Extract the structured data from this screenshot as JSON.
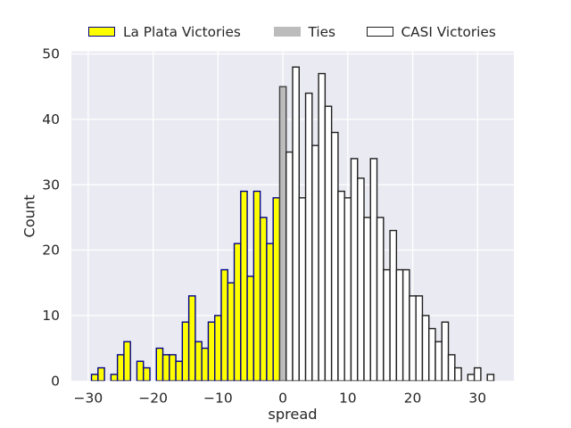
{
  "chart_data": {
    "type": "bar",
    "subtype": "histogram",
    "title": "",
    "xlabel": "spread",
    "ylabel": "Count",
    "xlim": [
      -32.6,
      35.6
    ],
    "ylim": [
      0,
      50.4
    ],
    "xticks": [
      -30,
      -20,
      -10,
      0,
      10,
      20,
      30
    ],
    "xtick_labels": [
      "−30",
      "−20",
      "−10",
      "0",
      "10",
      "20",
      "30"
    ],
    "yticks": [
      0,
      10,
      20,
      30,
      40,
      50
    ],
    "ytick_labels": [
      "0",
      "10",
      "20",
      "30",
      "40",
      "50"
    ],
    "bin_width": 1,
    "grid": true,
    "legend_position": "top-center",
    "plot_background": "#eaeaf2",
    "gridline_color": "#ffffff",
    "text_color": "#262626",
    "series": [
      {
        "name": "La Plata Victories",
        "fill": "#ffff00",
        "edge": "#00008b",
        "legend_edge": "#00008b",
        "bins": [
          [
            -29,
            1
          ],
          [
            -28,
            2
          ],
          [
            -26,
            1
          ],
          [
            -25,
            4
          ],
          [
            -24,
            6
          ],
          [
            -22,
            3
          ],
          [
            -21,
            2
          ],
          [
            -19,
            5
          ],
          [
            -18,
            4
          ],
          [
            -17,
            4
          ],
          [
            -16,
            3
          ],
          [
            -15,
            9
          ],
          [
            -14,
            13
          ],
          [
            -13,
            6
          ],
          [
            -12,
            5
          ],
          [
            -11,
            9
          ],
          [
            -10,
            10
          ],
          [
            -9,
            17
          ],
          [
            -8,
            15
          ],
          [
            -7,
            21
          ],
          [
            -6,
            29
          ],
          [
            -5,
            16
          ],
          [
            -4,
            29
          ],
          [
            -3,
            25
          ],
          [
            -2,
            21
          ],
          [
            -1,
            28
          ]
        ]
      },
      {
        "name": "Ties",
        "fill": "#bcbcbc",
        "edge": "#404040",
        "legend_edge": "none",
        "bins": [
          [
            0,
            45
          ]
        ]
      },
      {
        "name": "CASI Victories",
        "fill": "#ffffff",
        "edge": "#1f1f1f",
        "legend_edge": "#1f1f1f",
        "bins": [
          [
            1,
            35
          ],
          [
            2,
            48
          ],
          [
            3,
            28
          ],
          [
            4,
            44
          ],
          [
            5,
            36
          ],
          [
            6,
            47
          ],
          [
            7,
            42
          ],
          [
            8,
            38
          ],
          [
            9,
            29
          ],
          [
            10,
            28
          ],
          [
            11,
            34
          ],
          [
            12,
            31
          ],
          [
            13,
            25
          ],
          [
            14,
            34
          ],
          [
            15,
            25
          ],
          [
            16,
            17
          ],
          [
            17,
            23
          ],
          [
            18,
            17
          ],
          [
            19,
            17
          ],
          [
            20,
            13
          ],
          [
            21,
            13
          ],
          [
            22,
            10
          ],
          [
            23,
            8
          ],
          [
            24,
            6
          ],
          [
            25,
            9
          ],
          [
            26,
            4
          ],
          [
            27,
            2
          ],
          [
            29,
            1
          ],
          [
            30,
            2
          ],
          [
            32,
            1
          ]
        ]
      }
    ]
  }
}
